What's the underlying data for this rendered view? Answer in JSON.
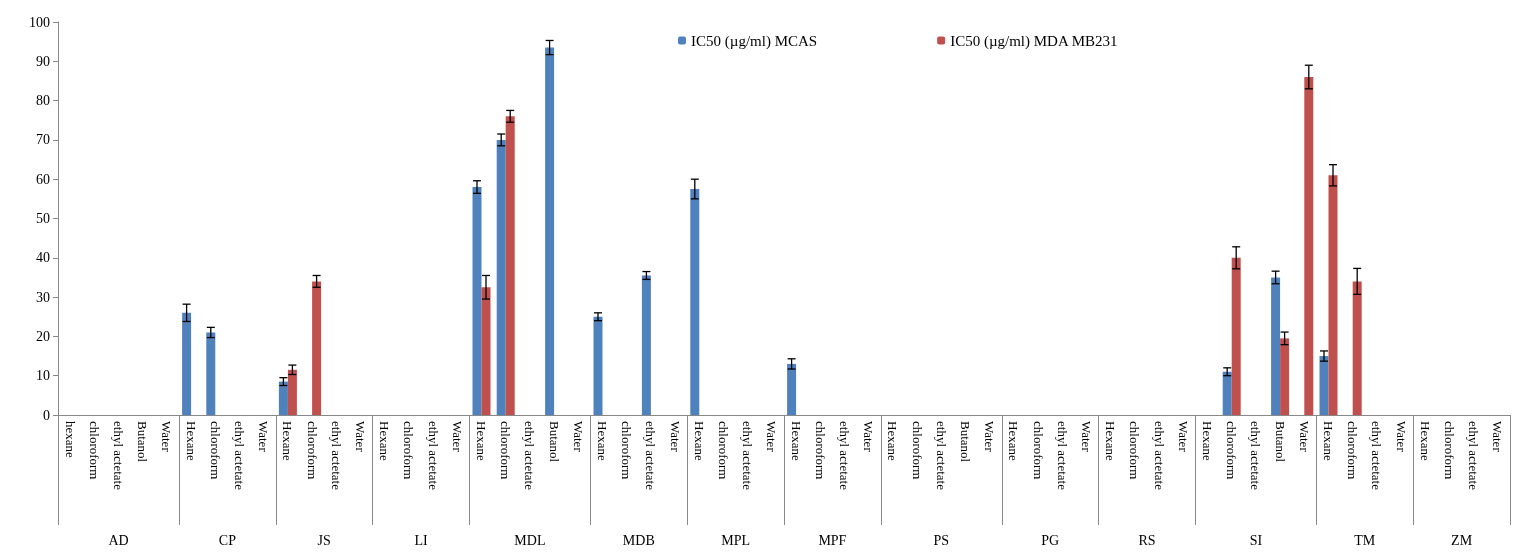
{
  "chart_data": {
    "type": "bar",
    "categories": [
      "hexane",
      "chloroform",
      "ethyl actetate",
      "Butanol",
      "Water",
      "Hexane",
      "chloroform",
      "ethyl actetate",
      "Water",
      "Hexane",
      "chloroform",
      "ethyl actetate",
      "Water",
      "Hexane",
      "chloroform",
      "ethyl actetate",
      "Water",
      "Hexane",
      "chloroform",
      "ethyl actetate",
      "Butanol",
      "Water",
      "Hexane",
      "chloroform",
      "ethyl actetate",
      "Water",
      "Hexane",
      "chloroform",
      "ethyl actetate",
      "Water",
      "Hexane",
      "chloroform",
      "ethyl actetate",
      "Water",
      "Hexane",
      "chloroform",
      "ethyl actetate",
      "Butanol",
      "Water",
      "Hexane",
      "chloroform",
      "ethyl actetate",
      "Water",
      "Hexane",
      "chloroform",
      "ethyl actetate",
      "Water",
      "Hexane",
      "chloroform",
      "ethyl actetate",
      "Butanol",
      "Water",
      "Hexane",
      "chloroform",
      "ethyl actetate",
      "Water",
      "Hexane",
      "chloroform",
      "ethyl actetate",
      "Water"
    ],
    "annotations": [
      "AD",
      "CP",
      "JS",
      "LI",
      "MDL",
      "MDB",
      "MPL",
      "MPF",
      "PS",
      "PG",
      "RS",
      "SI",
      "TM",
      "ZM"
    ],
    "series": [
      {
        "name": "IC50 (µg/ml) MCAS",
        "color": "#4f81bd",
        "values": [
          null,
          null,
          null,
          null,
          null,
          26,
          21,
          null,
          null,
          8.5,
          null,
          null,
          null,
          null,
          null,
          null,
          null,
          58,
          70,
          null,
          93.5,
          null,
          25,
          null,
          35.5,
          null,
          57.5,
          null,
          null,
          null,
          13,
          null,
          null,
          null,
          null,
          null,
          null,
          null,
          null,
          null,
          null,
          null,
          null,
          null,
          null,
          null,
          null,
          null,
          11,
          null,
          35,
          null,
          15,
          null,
          null,
          null,
          null,
          null,
          null,
          null
        ],
        "errors": [
          null,
          null,
          null,
          null,
          null,
          2.2,
          1.3,
          null,
          null,
          1,
          null,
          null,
          null,
          null,
          null,
          null,
          null,
          1.6,
          1.5,
          null,
          1.8,
          null,
          1,
          null,
          1,
          null,
          2.5,
          null,
          null,
          null,
          1.3,
          null,
          null,
          null,
          null,
          null,
          null,
          null,
          null,
          null,
          null,
          null,
          null,
          null,
          null,
          null,
          null,
          null,
          1,
          null,
          1.6,
          null,
          1.3,
          null,
          null,
          null,
          null,
          null,
          null,
          null
        ]
      },
      {
        "name": "IC50 (µg/ml) MDA MB231",
        "color": "#c0504d",
        "values": [
          null,
          null,
          null,
          null,
          null,
          null,
          null,
          null,
          null,
          11.5,
          34,
          null,
          null,
          null,
          null,
          null,
          null,
          32.5,
          76,
          null,
          null,
          null,
          null,
          null,
          null,
          null,
          null,
          null,
          null,
          null,
          null,
          null,
          null,
          null,
          null,
          null,
          null,
          null,
          null,
          null,
          null,
          null,
          null,
          null,
          null,
          null,
          null,
          null,
          40,
          null,
          19.5,
          86,
          61,
          34,
          null,
          null,
          null,
          null,
          null,
          null
        ],
        "errors": [
          null,
          null,
          null,
          null,
          null,
          null,
          null,
          null,
          null,
          1.2,
          1.5,
          null,
          null,
          null,
          null,
          null,
          null,
          3,
          1.5,
          null,
          null,
          null,
          null,
          null,
          null,
          null,
          null,
          null,
          null,
          null,
          null,
          null,
          null,
          null,
          null,
          null,
          null,
          null,
          null,
          null,
          null,
          null,
          null,
          null,
          null,
          null,
          null,
          null,
          2.8,
          null,
          1.6,
          3,
          2.7,
          3.3,
          null,
          null,
          null,
          null,
          null,
          null
        ]
      }
    ],
    "ylim": [
      0,
      100
    ],
    "yticks": [
      0,
      10,
      20,
      30,
      40,
      50,
      60,
      70,
      80,
      90,
      100
    ],
    "legend": "top"
  }
}
